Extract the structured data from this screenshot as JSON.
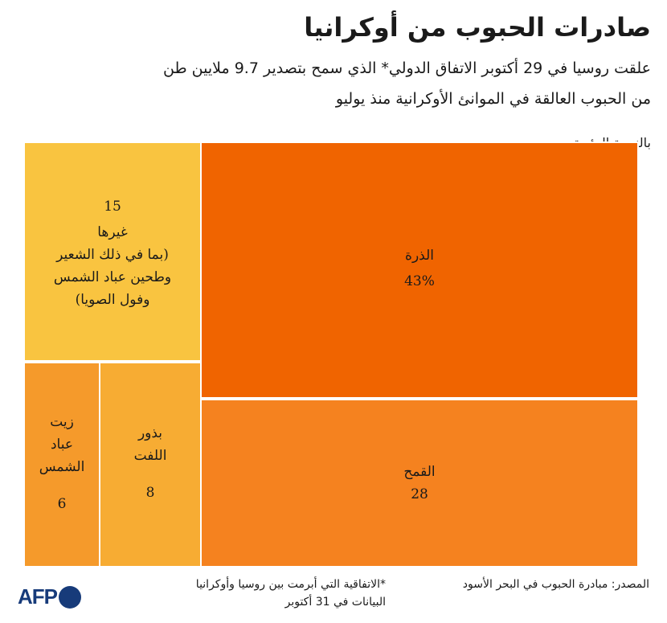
{
  "header": {
    "title": "صادرات الحبوب من أوكرانيا",
    "subtitle_line1": "علقت روسيا في 29 أكتوبر الاتفاق الدولي* الذي سمح بتصدير 9.7 ملايين طن",
    "subtitle_line2": "من الحبوب العالقة في الموانئ الأوكرانية منذ يوليو",
    "unit": "بالنسبة المئوية"
  },
  "chart_data": {
    "type": "treemap",
    "items": [
      {
        "name": "الذرة",
        "value": 43,
        "value_label": "43%",
        "color": "#f06400"
      },
      {
        "name": "القمح",
        "value": 28,
        "value_label": "28",
        "color": "#f5821f"
      },
      {
        "name": "غيرها",
        "value": 15,
        "value_label": "15",
        "color": "#f9c440",
        "detail": [
          "(بما في ذلك الشعير",
          "وطحين عباد الشمس",
          "وفول الصويا)"
        ]
      },
      {
        "name_lines": [
          "بذور",
          "اللفت"
        ],
        "value": 8,
        "value_label": "8",
        "color": "#f7ac33"
      },
      {
        "name_lines": [
          "زيت",
          "عباد",
          "الشمس"
        ],
        "value": 6,
        "value_label": "6",
        "color": "#f59a2b"
      }
    ]
  },
  "footer": {
    "source": "المصدر: مبادرة الحبوب في البحر الأسود",
    "note_line1": "*الاتفاقية التي أبرمت بين روسيا وأوكرانيا",
    "note_line2": "البيانات في 31 أكتوبر",
    "logo_text": "AFP"
  }
}
